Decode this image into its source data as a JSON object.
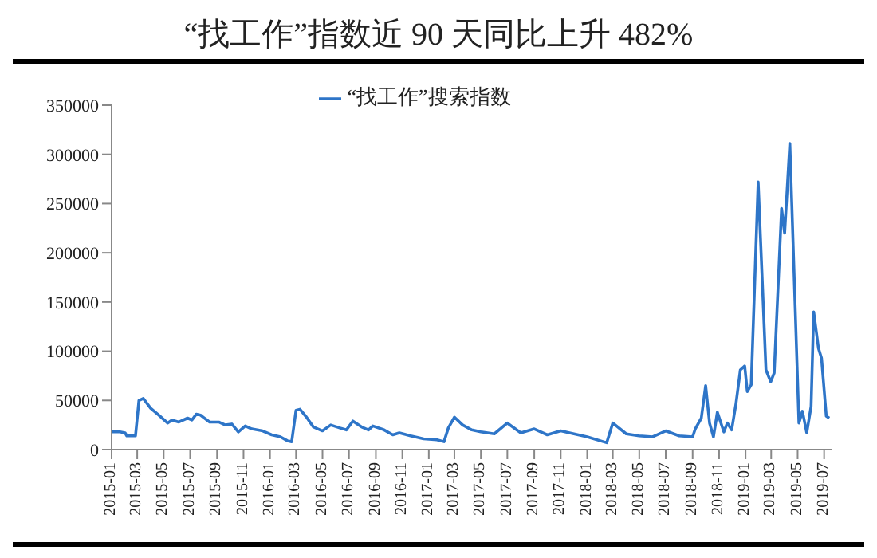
{
  "chart_data": {
    "type": "line",
    "title": "“找工作”指数近 90 天同比上升 482%",
    "x": [
      "2015-01-01",
      "2015-01-20",
      "2015-02-01",
      "2015-02-05",
      "2015-02-25",
      "2015-03-05",
      "2015-03-15",
      "2015-04-01",
      "2015-04-20",
      "2015-05-10",
      "2015-05-20",
      "2015-06-05",
      "2015-06-25",
      "2015-07-05",
      "2015-07-15",
      "2015-07-25",
      "2015-08-15",
      "2015-09-05",
      "2015-09-20",
      "2015-10-05",
      "2015-10-20",
      "2015-11-05",
      "2015-11-20",
      "2015-12-15",
      "2016-01-05",
      "2016-01-25",
      "2016-02-10",
      "2016-02-20",
      "2016-03-01",
      "2016-03-10",
      "2016-03-25",
      "2016-04-10",
      "2016-05-01",
      "2016-05-20",
      "2016-06-10",
      "2016-06-25",
      "2016-07-10",
      "2016-07-30",
      "2016-08-15",
      "2016-08-25",
      "2016-09-20",
      "2016-10-10",
      "2016-10-25",
      "2016-11-20",
      "2016-12-20",
      "2017-01-20",
      "2017-02-05",
      "2017-02-15",
      "2017-03-01",
      "2017-03-20",
      "2017-04-10",
      "2017-05-01",
      "2017-06-01",
      "2017-07-01",
      "2017-08-01",
      "2017-09-01",
      "2017-10-01",
      "2017-11-01",
      "2018-01-01",
      "2018-02-15",
      "2018-03-01",
      "2018-04-01",
      "2018-05-01",
      "2018-06-01",
      "2018-07-01",
      "2018-08-01",
      "2018-09-01",
      "2018-09-07",
      "2018-09-21",
      "2018-10-01",
      "2018-10-10",
      "2018-10-19",
      "2018-10-28",
      "2018-11-12",
      "2018-11-20",
      "2018-11-30",
      "2018-12-10",
      "2018-12-20",
      "2018-12-30",
      "2019-01-05",
      "2019-01-14",
      "2019-01-30",
      "2019-02-17",
      "2019-02-28",
      "2019-03-08",
      "2019-03-25",
      "2019-04-01",
      "2019-04-13",
      "2019-05-04",
      "2019-05-12",
      "2019-05-22",
      "2019-06-01",
      "2019-06-07",
      "2019-06-18",
      "2019-06-25",
      "2019-07-06",
      "2019-07-13"
    ],
    "series": [
      {
        "name": "“找工作”搜索指数",
        "color": "#2e75c8",
        "values": [
          18000,
          18000,
          17000,
          14000,
          14000,
          50000,
          52000,
          42000,
          35000,
          27000,
          30000,
          28000,
          32000,
          30000,
          36000,
          35000,
          28000,
          28000,
          25000,
          26000,
          18000,
          24000,
          21000,
          19000,
          15000,
          13000,
          9000,
          8000,
          40000,
          41000,
          33000,
          23000,
          19000,
          25000,
          22000,
          20000,
          29000,
          23000,
          20000,
          24000,
          20000,
          15000,
          17000,
          14000,
          11000,
          10000,
          8000,
          22000,
          33000,
          25000,
          20000,
          18000,
          16000,
          27000,
          17000,
          21000,
          15000,
          19000,
          13000,
          7000,
          27000,
          16000,
          14000,
          13000,
          19000,
          14000,
          13000,
          21000,
          32000,
          65000,
          27000,
          13000,
          38000,
          18000,
          27000,
          20000,
          47000,
          81000,
          85000,
          59000,
          66000,
          272000,
          81000,
          69000,
          78000,
          245000,
          220000,
          311000,
          27000,
          39000,
          17000,
          44000,
          140000,
          103000,
          93000,
          34000,
          32000
        ]
      }
    ],
    "xlim": [
      "2015-01-01",
      "2019-07-20"
    ],
    "xticks": [
      "2015-01",
      "2015-03",
      "2015-05",
      "2015-07",
      "2015-09",
      "2015-11",
      "2016-01",
      "2016-03",
      "2016-05",
      "2016-07",
      "2016-09",
      "2016-11",
      "2017-01",
      "2017-03",
      "2017-05",
      "2017-07",
      "2017-09",
      "2017-11",
      "2018-01",
      "2018-03",
      "2018-05",
      "2018-07",
      "2018-09",
      "2018-11",
      "2019-01",
      "2019-03",
      "2019-05",
      "2019-07"
    ],
    "ylim": [
      0,
      350000
    ],
    "yticks": [
      0,
      50000,
      100000,
      150000,
      200000,
      250000,
      300000,
      350000
    ],
    "grid": false,
    "legend": "top",
    "marker": "none",
    "line_style": "solid"
  }
}
